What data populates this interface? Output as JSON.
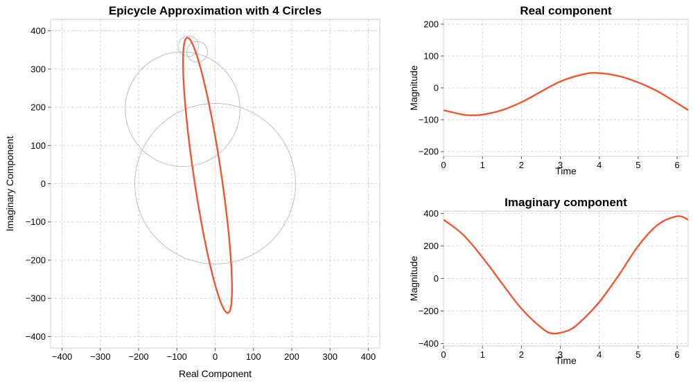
{
  "chart_data": [
    {
      "type": "line",
      "title": "Epicycle Approximation with 4 Circles",
      "xlabel": "Real Component",
      "ylabel": "Imaginary Component",
      "xlim": [
        -430,
        430
      ],
      "ylim": [
        -430,
        430
      ],
      "xticks": [
        -400,
        -300,
        -200,
        -100,
        0,
        100,
        200,
        300,
        400
      ],
      "yticks": [
        -400,
        -300,
        -200,
        -100,
        0,
        100,
        200,
        300,
        400
      ],
      "grid": true,
      "color": "#f05532",
      "curve": {
        "kind": "ellipse",
        "points": [
          {
            "x": -70,
            "y": 360
          },
          {
            "x": -88,
            "y": 150
          },
          {
            "x": -60,
            "y": -150
          },
          {
            "x": 10,
            "y": -340
          },
          {
            "x": 48,
            "y": -110
          },
          {
            "x": 20,
            "y": 250
          },
          {
            "x": -47,
            "y": 385
          }
        ],
        "center": [
          -20,
          22
        ],
        "semi_major": 364,
        "semi_minor": 36,
        "rotation_deg": 98.4
      },
      "circles": [
        {
          "cx": 0,
          "cy": 0,
          "r": 210
        },
        {
          "cx": -85,
          "cy": 195,
          "r": 150
        },
        {
          "cx": -47,
          "cy": 345,
          "r": 27
        },
        {
          "cx": -70,
          "cy": 360,
          "r": 27
        }
      ]
    },
    {
      "type": "line",
      "title": "Real component",
      "xlabel": "Time",
      "ylabel": "Magnitude",
      "xlim": [
        0,
        6.283
      ],
      "ylim": [
        -215,
        215
      ],
      "xticks": [
        0,
        1,
        2,
        3,
        4,
        5,
        6
      ],
      "yticks": [
        -200,
        -100,
        0,
        100,
        200
      ],
      "grid": true,
      "color": "#f05532",
      "x": [
        0,
        0.5,
        0.75,
        1,
        1.5,
        2,
        2.5,
        3,
        3.5,
        3.9,
        4.5,
        5,
        5.5,
        6,
        6.283
      ],
      "y": [
        -70,
        -84,
        -86,
        -84,
        -70,
        -45,
        -12,
        20,
        40,
        47,
        37,
        17,
        -11,
        -48,
        -70
      ]
    },
    {
      "type": "line",
      "title": "Imaginary component",
      "xlabel": "Time",
      "ylabel": "Magnitude",
      "xlim": [
        0,
        6.283
      ],
      "ylim": [
        -415,
        415
      ],
      "xticks": [
        0,
        1,
        2,
        3,
        4,
        5,
        6
      ],
      "yticks": [
        -400,
        -200,
        0,
        200,
        400
      ],
      "grid": true,
      "color": "#f05532",
      "x": [
        0,
        0.5,
        1,
        1.5,
        2,
        2.5,
        2.8,
        3.2,
        3.5,
        4,
        4.5,
        5,
        5.5,
        6,
        6.283
      ],
      "y": [
        362,
        270,
        130,
        -30,
        -185,
        -300,
        -338,
        -320,
        -270,
        -145,
        20,
        200,
        330,
        383,
        362
      ]
    }
  ]
}
